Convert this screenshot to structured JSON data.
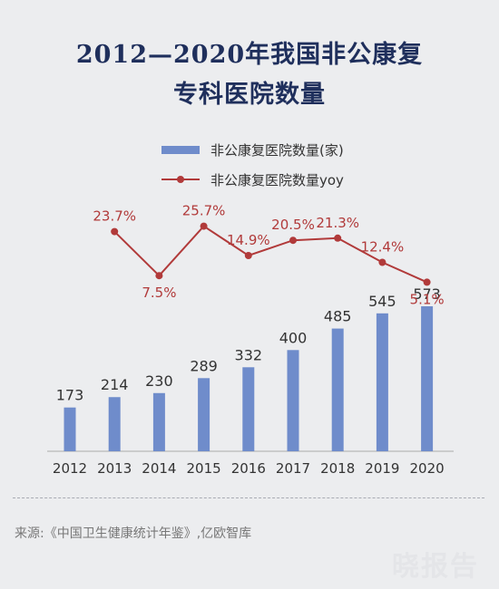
{
  "title_line1": "2012—2020年我国非公康复",
  "title_line2": "专科医院数量",
  "source": "来源:《中国卫生健康统计年鉴》,亿欧智库",
  "watermark": "晓报告",
  "colors": {
    "bar": "#6f8ccb",
    "line": "#b13a3a",
    "title": "#1f2f5c"
  },
  "chart_data": {
    "type": "bar",
    "categories": [
      "2012",
      "2013",
      "2014",
      "2015",
      "2016",
      "2017",
      "2018",
      "2019",
      "2020"
    ],
    "series": [
      {
        "name": "非公康复医院数量(家)",
        "type": "bar",
        "values": [
          173,
          214,
          230,
          289,
          332,
          400,
          485,
          545,
          573
        ],
        "labels": [
          "173",
          "214",
          "230",
          "289",
          "332",
          "400",
          "485",
          "545",
          "573"
        ]
      },
      {
        "name": "非公康复医院数量yoy",
        "type": "line",
        "values": [
          null,
          23.7,
          7.5,
          25.7,
          14.9,
          20.5,
          21.3,
          12.4,
          5.1
        ],
        "labels": [
          "",
          "23.7%",
          "7.5%",
          "25.7%",
          "14.9%",
          "20.5%",
          "21.3%",
          "12.4%",
          "5.1%"
        ]
      }
    ],
    "legend_position": "top"
  }
}
